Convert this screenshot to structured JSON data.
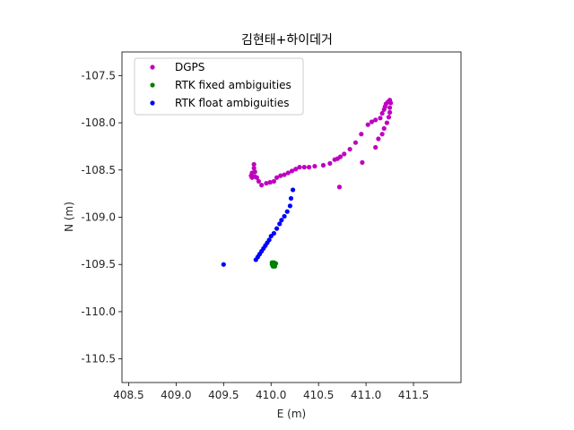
{
  "chart_data": {
    "type": "scatter",
    "title": "김현태+하이데거",
    "xlabel": "E (m)",
    "ylabel": "N (m)",
    "xlim": [
      408.43,
      412.0
    ],
    "ylim": [
      -110.75,
      -107.25
    ],
    "xticks": [
      408.5,
      409.0,
      409.5,
      410.0,
      410.5,
      411.0,
      411.5
    ],
    "xtick_labels": [
      "408.5",
      "409.0",
      "409.5",
      "410.0",
      "410.5",
      "411.0",
      "411.5"
    ],
    "yticks": [
      -107.5,
      -108.0,
      -108.5,
      -109.0,
      -109.5,
      -110.0,
      -110.5
    ],
    "ytick_labels": [
      "-107.5",
      "-108.0",
      "-108.5",
      "-109.0",
      "-109.5",
      "-110.0",
      "-110.5"
    ],
    "grid": false,
    "legend_position": "upper-left",
    "series": [
      {
        "name": "DGPS",
        "color": "#bf00bf",
        "points": [
          [
            409.82,
            -108.44
          ],
          [
            409.82,
            -108.48
          ],
          [
            409.83,
            -108.52
          ],
          [
            409.8,
            -108.53
          ],
          [
            409.79,
            -108.56
          ],
          [
            409.8,
            -108.58
          ],
          [
            409.83,
            -108.57
          ],
          [
            409.85,
            -108.58
          ],
          [
            409.87,
            -108.62
          ],
          [
            409.9,
            -108.66
          ],
          [
            409.95,
            -108.64
          ],
          [
            409.99,
            -108.63
          ],
          [
            410.03,
            -108.62
          ],
          [
            410.06,
            -108.58
          ],
          [
            410.1,
            -108.56
          ],
          [
            410.14,
            -108.55
          ],
          [
            410.18,
            -108.53
          ],
          [
            410.22,
            -108.51
          ],
          [
            410.26,
            -108.49
          ],
          [
            410.3,
            -108.47
          ],
          [
            410.35,
            -108.47
          ],
          [
            410.4,
            -108.47
          ],
          [
            410.46,
            -108.46
          ],
          [
            410.55,
            -108.45
          ],
          [
            410.62,
            -108.43
          ],
          [
            410.67,
            -108.39
          ],
          [
            410.7,
            -108.38
          ],
          [
            410.73,
            -108.36
          ],
          [
            410.77,
            -108.33
          ],
          [
            410.83,
            -108.28
          ],
          [
            410.89,
            -108.21
          ],
          [
            410.95,
            -108.12
          ],
          [
            411.02,
            -108.02
          ],
          [
            411.06,
            -107.99
          ],
          [
            411.1,
            -107.97
          ],
          [
            411.15,
            -107.95
          ],
          [
            411.17,
            -107.9
          ],
          [
            411.19,
            -107.86
          ],
          [
            411.2,
            -107.83
          ],
          [
            411.21,
            -107.8
          ],
          [
            411.23,
            -107.78
          ],
          [
            411.25,
            -107.77
          ],
          [
            411.25,
            -107.76
          ],
          [
            411.26,
            -107.79
          ],
          [
            411.25,
            -107.84
          ],
          [
            411.25,
            -107.89
          ],
          [
            411.24,
            -107.94
          ],
          [
            411.22,
            -108.0
          ],
          [
            411.19,
            -108.06
          ],
          [
            411.17,
            -108.12
          ],
          [
            411.13,
            -108.17
          ],
          [
            411.1,
            -108.26
          ],
          [
            410.96,
            -108.42
          ],
          [
            410.72,
            -108.68
          ]
        ]
      },
      {
        "name": "RTK fixed ambiguities",
        "color": "#008000",
        "points": [
          [
            410.01,
            -109.48
          ],
          [
            410.02,
            -109.49
          ],
          [
            410.03,
            -109.5
          ],
          [
            410.02,
            -109.51
          ],
          [
            410.04,
            -109.5
          ],
          [
            410.03,
            -109.48
          ],
          [
            410.04,
            -109.52
          ],
          [
            410.02,
            -109.52
          ],
          [
            410.05,
            -109.49
          ],
          [
            410.01,
            -109.5
          ]
        ]
      },
      {
        "name": "RTK float ambiguities",
        "color": "#0000ff",
        "points": [
          [
            409.5,
            -109.5
          ],
          [
            409.84,
            -109.45
          ],
          [
            409.86,
            -109.42
          ],
          [
            409.88,
            -109.39
          ],
          [
            409.9,
            -109.36
          ],
          [
            409.92,
            -109.33
          ],
          [
            409.94,
            -109.3
          ],
          [
            409.96,
            -109.27
          ],
          [
            409.98,
            -109.24
          ],
          [
            410.0,
            -109.2
          ],
          [
            410.03,
            -109.17
          ],
          [
            410.06,
            -109.12
          ],
          [
            410.09,
            -109.07
          ],
          [
            410.11,
            -109.03
          ],
          [
            410.14,
            -108.99
          ],
          [
            410.17,
            -108.94
          ],
          [
            410.2,
            -108.88
          ],
          [
            410.21,
            -108.8
          ],
          [
            410.23,
            -108.71
          ]
        ]
      }
    ]
  }
}
